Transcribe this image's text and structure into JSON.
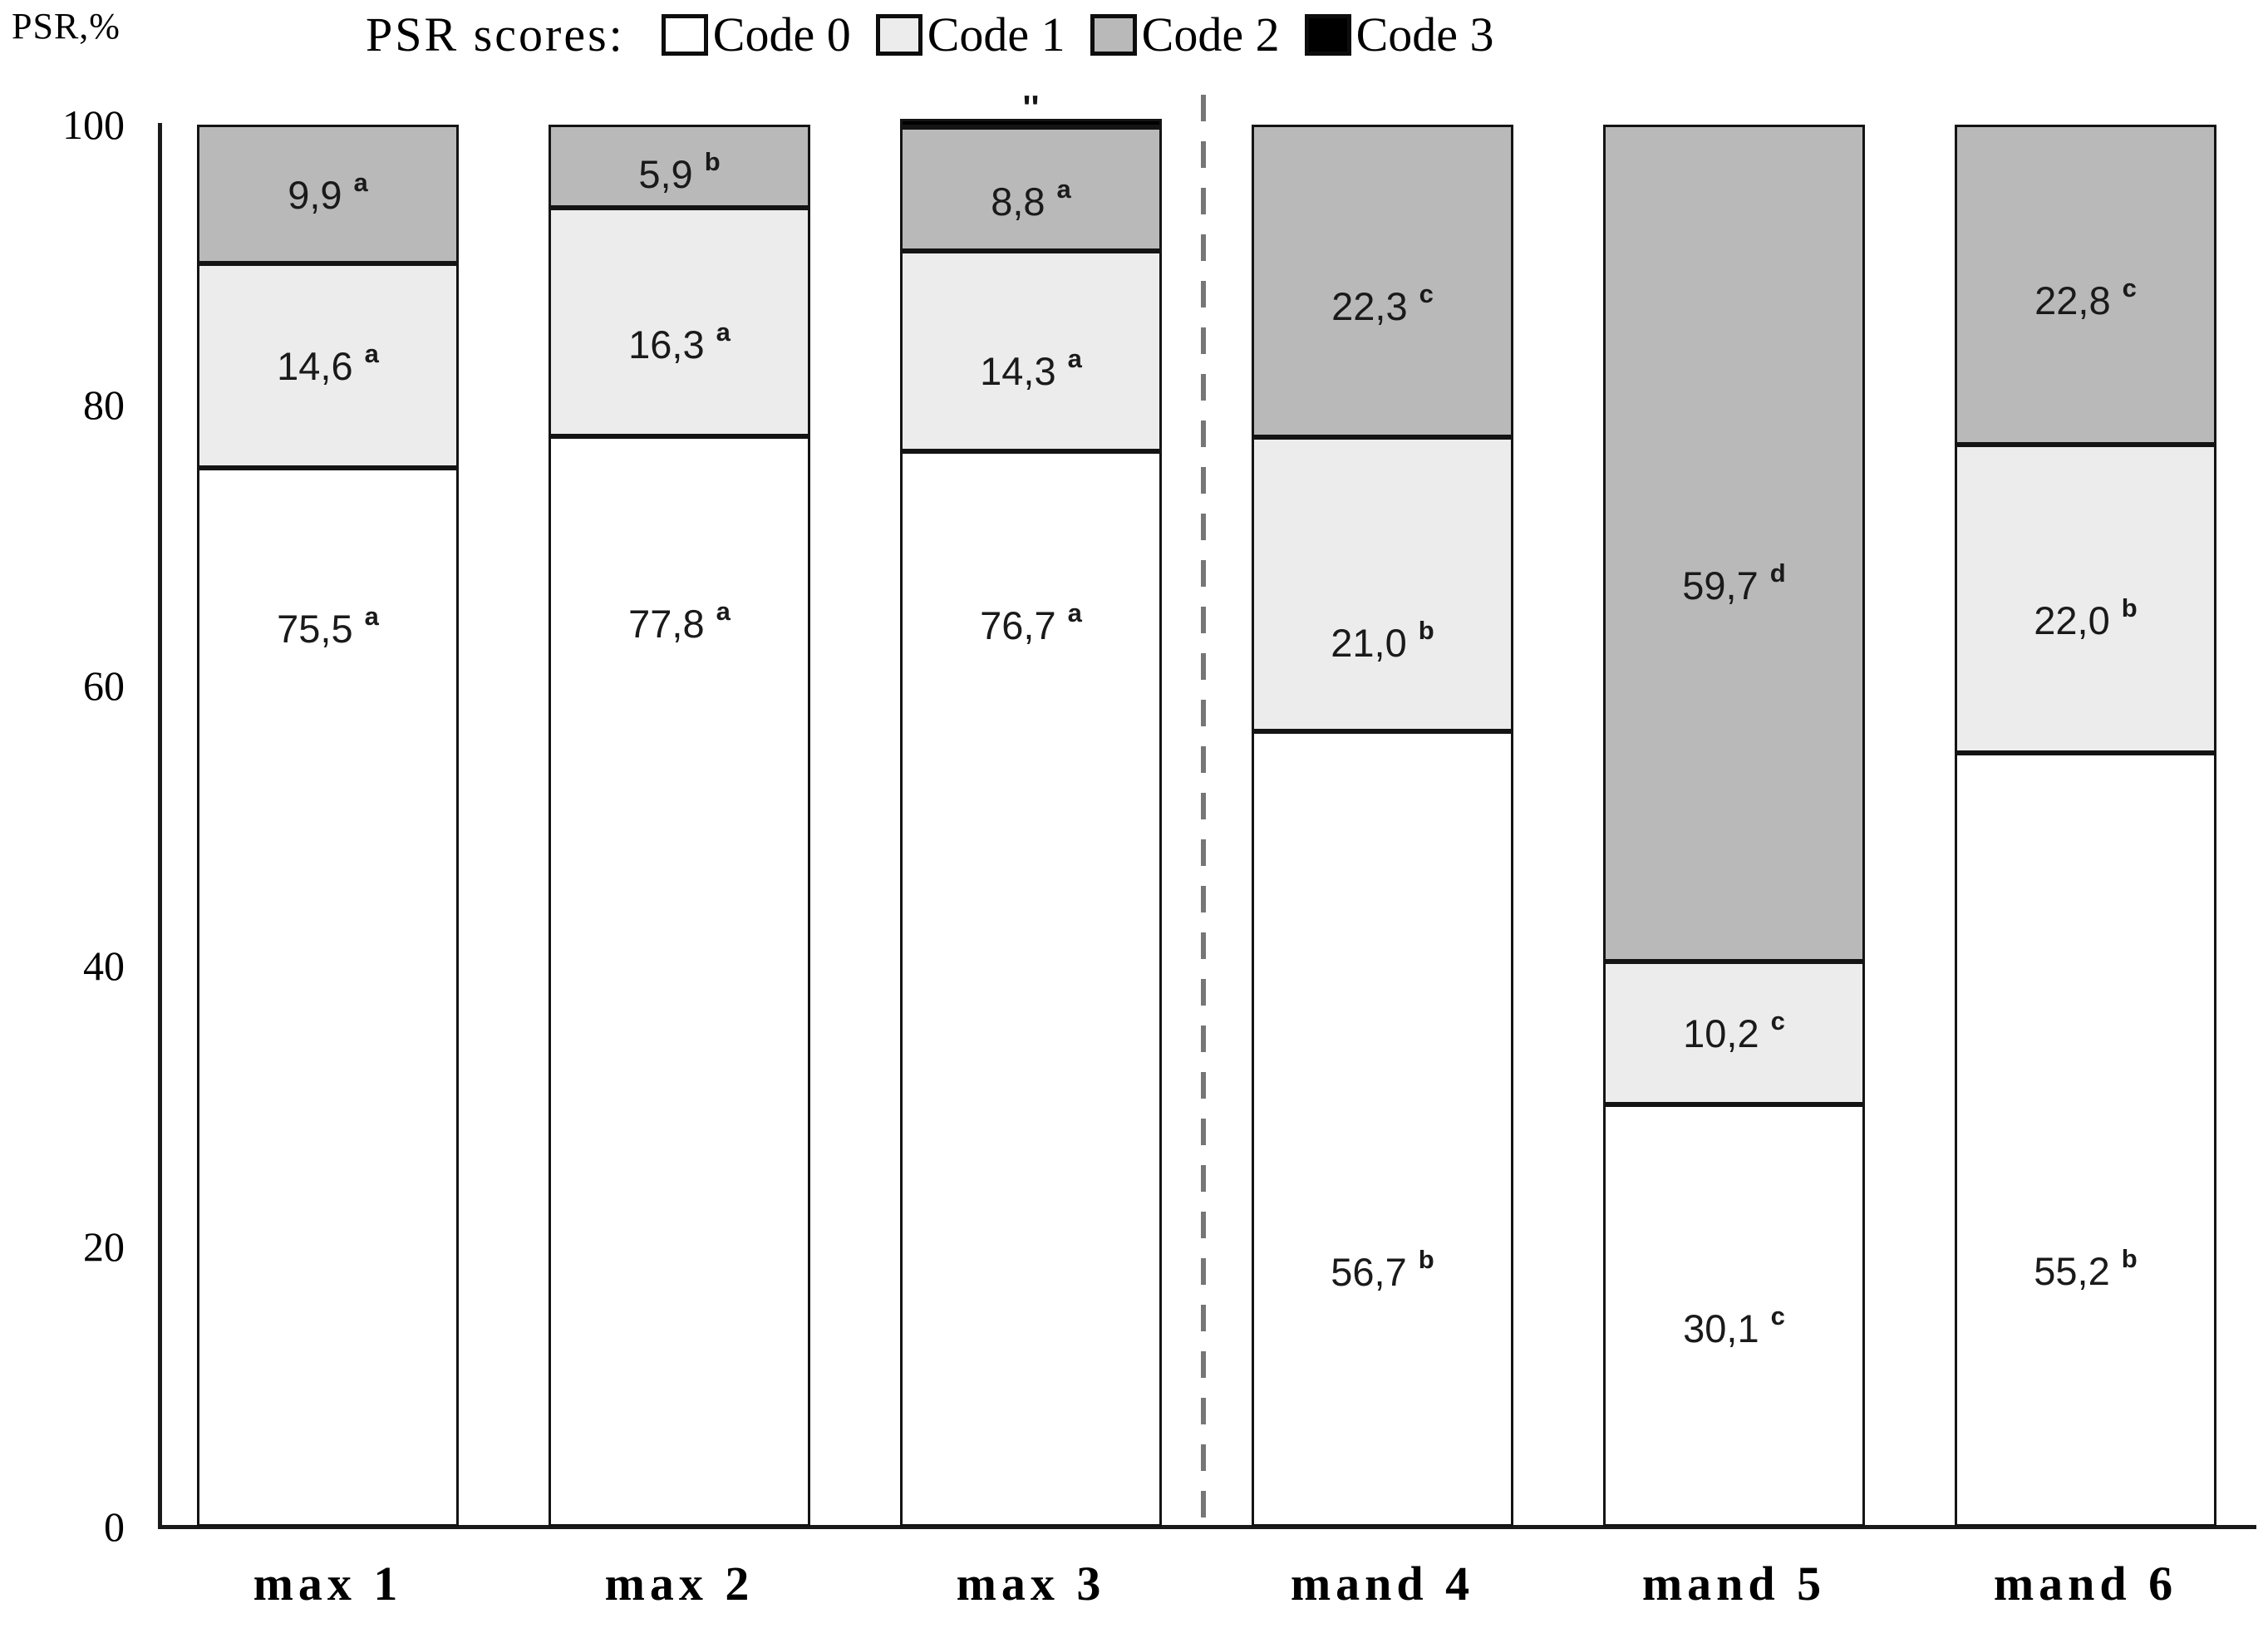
{
  "figure": {
    "y_axis_title": "PSR,%",
    "legend": {
      "title": "PSR scores:",
      "items": [
        {
          "label": "Code 0",
          "color": "#ffffff"
        },
        {
          "label": "Code 1",
          "color": "#ececec"
        },
        {
          "label": "Code 2",
          "color": "#b9b9b9"
        },
        {
          "label": "Code 3",
          "color": "#000000"
        }
      ]
    }
  },
  "chart_data": {
    "type": "bar",
    "stacked": true,
    "title": "PSR scores:",
    "ylabel": "PSR,%",
    "ylim": [
      0,
      100
    ],
    "yticks": [
      0,
      20,
      40,
      60,
      80,
      100
    ],
    "grid": false,
    "legend_position": "top",
    "categories": [
      "max 1",
      "max 2",
      "max 3",
      "mand 4",
      "mand 5",
      "mand 6"
    ],
    "series": [
      {
        "name": "Code 0",
        "color": "#ffffff",
        "values": [
          75.5,
          77.8,
          76.7,
          56.7,
          30.1,
          55.2
        ],
        "labels": [
          "75,5",
          "77,8",
          "76,7",
          "56,7",
          "30,1",
          "55,2"
        ],
        "sups": [
          "a",
          "a",
          "a",
          "b",
          "c",
          "b"
        ],
        "label_pos": [
          0.15,
          0.17,
          0.16,
          0.68,
          0.53,
          0.67
        ]
      },
      {
        "name": "Code 1",
        "color": "#ececec",
        "values": [
          14.6,
          16.3,
          14.3,
          21.0,
          10.2,
          22.0
        ],
        "labels": [
          "14,6",
          "16,3",
          "14,3",
          "21,0",
          "10,2",
          "22,0"
        ],
        "sups": [
          "a",
          "a",
          "a",
          "b",
          "c",
          "b"
        ],
        "label_pos": [
          0.5,
          0.6,
          0.6,
          0.7,
          0.5,
          0.57
        ]
      },
      {
        "name": "Code 2",
        "color": "#b9b9b9",
        "values": [
          9.9,
          5.9,
          8.8,
          22.3,
          59.7,
          22.8
        ],
        "labels": [
          "9,9",
          "5,9",
          "8,8",
          "22,3",
          "59,7",
          "22,8"
        ],
        "sups": [
          "a",
          "b",
          "a",
          "c",
          "d",
          "c"
        ],
        "label_pos": [
          0.5,
          0.6,
          0.6,
          0.58,
          0.55,
          0.55
        ]
      },
      {
        "name": "Code 3",
        "color": "#000000",
        "values": [
          0,
          0,
          0.2,
          0,
          0,
          0
        ],
        "labels": [
          "",
          "",
          "",
          "",
          "",
          ""
        ],
        "sups": [
          "",
          "",
          "",
          "",
          "",
          ""
        ],
        "label_pos": [
          0.5,
          0.5,
          0.5,
          0.5,
          0.5,
          0.5
        ]
      }
    ],
    "separator_after_category": "max 3",
    "annotation_above_bar": {
      "category": "max 3",
      "text": "''"
    }
  }
}
